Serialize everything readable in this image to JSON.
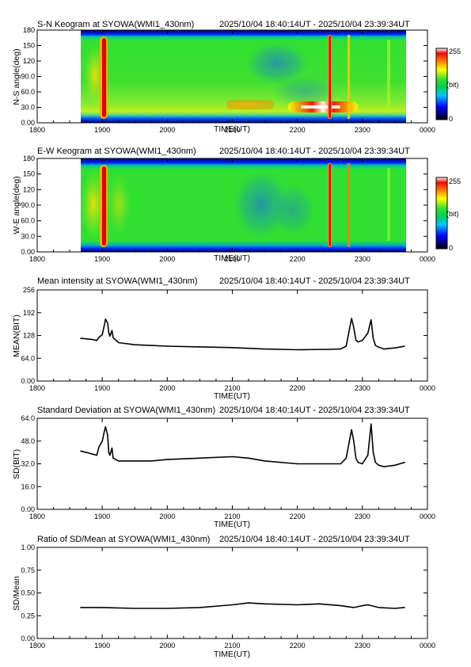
{
  "time_range": "2025/10/04 18:40:14UT - 2025/10/04 23:39:34UT",
  "colorbar": {
    "max_label": "255",
    "unit_label": "(bit)",
    "min_label": "0"
  },
  "chart_data": [
    {
      "type": "heatmap",
      "title": "S-N Keogram at SYOWA(WMI1_430nm)",
      "xlabel": "TIME(UT)",
      "ylabel": "N-S angle(deg)",
      "x_ticks": [
        "1800",
        "1900",
        "2000",
        "2100",
        "2200",
        "2300",
        "0000"
      ],
      "y_ticks": [
        "0.00",
        "30.0",
        "60.0",
        "90.0",
        "120",
        "150",
        "180"
      ],
      "ylim": [
        0,
        180
      ],
      "zlim": [
        0,
        255
      ],
      "data_window": [
        "18:40",
        "23:39"
      ],
      "features": [
        {
          "time": "19:03",
          "angle": [
            0,
            180
          ],
          "intensity": "high"
        },
        {
          "time": "22:52",
          "angle": [
            0,
            180
          ],
          "intensity": "high"
        },
        {
          "time": "22:32",
          "angle": [
            10,
            180
          ],
          "intensity": "moderate"
        },
        {
          "time": "22:00-22:55",
          "angle": [
            15,
            35
          ],
          "intensity": "moderate"
        },
        {
          "time": "21:00-22:10",
          "angle": [
            25,
            45
          ],
          "intensity": "moderate"
        },
        {
          "time": "21:25-22:10",
          "angle": [
            50,
            160
          ],
          "intensity": "low"
        }
      ]
    },
    {
      "type": "heatmap",
      "title": "E-W Keogram at SYOWA(WMI1_430nm)",
      "xlabel": "TIME(UT)",
      "ylabel": "W-E angle(deg)",
      "x_ticks": [
        "1800",
        "1900",
        "2000",
        "2100",
        "2200",
        "2300",
        "0000"
      ],
      "y_ticks": [
        "0.00",
        "30.0",
        "60.0",
        "90.0",
        "120",
        "150",
        "180"
      ],
      "ylim": [
        0,
        180
      ],
      "zlim": [
        0,
        255
      ],
      "data_window": [
        "18:40",
        "23:39"
      ],
      "features": [
        {
          "time": "19:03",
          "angle": [
            0,
            180
          ],
          "intensity": "high"
        },
        {
          "time": "22:32",
          "angle": [
            0,
            180
          ],
          "intensity": "high"
        },
        {
          "time": "22:52",
          "angle": [
            0,
            180
          ],
          "intensity": "moderate"
        },
        {
          "time": "21:00-22:10",
          "angle": [
            30,
            150
          ],
          "intensity": "low"
        }
      ]
    },
    {
      "type": "line",
      "title": "Mean intensity at SYOWA(WMI1_430nm)",
      "xlabel": "TIME(UT)",
      "ylabel": "MEAN(BIT)",
      "x_ticks": [
        "1800",
        "1900",
        "2000",
        "2100",
        "2200",
        "2300",
        "0000"
      ],
      "y_ticks": [
        "0.00",
        "64.0",
        "128",
        "192",
        "256"
      ],
      "ylim": [
        0,
        256
      ],
      "x": [
        "18:40",
        "18:50",
        "18:55",
        "18:57",
        "19:00",
        "19:02",
        "19:03",
        "19:05",
        "19:06",
        "19:07",
        "19:09",
        "19:10",
        "19:15",
        "19:30",
        "19:45",
        "20:00",
        "20:30",
        "21:00",
        "21:15",
        "21:30",
        "22:00",
        "22:30",
        "22:40",
        "22:45",
        "22:48",
        "22:50",
        "22:52",
        "22:54",
        "22:56",
        "23:00",
        "23:05",
        "23:08",
        "23:10",
        "23:12",
        "23:15",
        "23:20",
        "23:30",
        "23:39"
      ],
      "values": [
        120,
        117,
        114,
        123,
        130,
        158,
        174,
        162,
        136,
        126,
        142,
        122,
        108,
        102,
        100,
        98,
        96,
        94,
        92,
        90,
        88,
        89,
        90,
        98,
        145,
        176,
        150,
        115,
        110,
        114,
        135,
        172,
        120,
        100,
        95,
        90,
        93,
        98
      ]
    },
    {
      "type": "line",
      "title": "Standard Deviation at SYOWA(WMI1_430nm)",
      "xlabel": "TIME(UT)",
      "ylabel": "SD(BIT)",
      "x_ticks": [
        "1800",
        "1900",
        "2000",
        "2100",
        "2200",
        "2300",
        "0000"
      ],
      "y_ticks": [
        "0.00",
        "16.0",
        "32.0",
        "48.0",
        "64.0"
      ],
      "ylim": [
        0,
        64
      ],
      "x": [
        "18:40",
        "18:50",
        "18:55",
        "18:57",
        "19:00",
        "19:02",
        "19:03",
        "19:05",
        "19:06",
        "19:07",
        "19:09",
        "19:10",
        "19:15",
        "19:30",
        "19:45",
        "20:00",
        "20:30",
        "21:00",
        "21:15",
        "21:30",
        "22:00",
        "22:30",
        "22:40",
        "22:45",
        "22:48",
        "22:50",
        "22:52",
        "22:54",
        "22:56",
        "23:00",
        "23:05",
        "23:08",
        "23:10",
        "23:12",
        "23:15",
        "23:20",
        "23:30",
        "23:39"
      ],
      "values": [
        41,
        39,
        38,
        44,
        48,
        55,
        58,
        52,
        40,
        38,
        43,
        36,
        34,
        34,
        34,
        35,
        36,
        37,
        36,
        34,
        32,
        32,
        32,
        36,
        48,
        56,
        48,
        36,
        33,
        32,
        38,
        60,
        40,
        33,
        31,
        30,
        31,
        33
      ]
    },
    {
      "type": "line",
      "title": "Ratio of SD/Mean at SYOWA(WMI1_430nm)",
      "xlabel": "TIME(UT)",
      "ylabel": "SD/Mean",
      "x_ticks": [
        "1800",
        "1900",
        "2000",
        "2100",
        "2200",
        "2300",
        "0000"
      ],
      "y_ticks": [
        "0.00",
        "0.25",
        "0.50",
        "0.75",
        "1.00"
      ],
      "ylim": [
        0,
        1
      ],
      "x": [
        "18:40",
        "19:00",
        "19:30",
        "20:00",
        "20:30",
        "21:00",
        "21:15",
        "21:30",
        "22:00",
        "22:20",
        "22:40",
        "22:52",
        "23:00",
        "23:05",
        "23:15",
        "23:30",
        "23:39"
      ],
      "values": [
        0.34,
        0.34,
        0.33,
        0.33,
        0.34,
        0.37,
        0.39,
        0.38,
        0.37,
        0.38,
        0.36,
        0.34,
        0.36,
        0.37,
        0.34,
        0.33,
        0.34
      ]
    }
  ]
}
